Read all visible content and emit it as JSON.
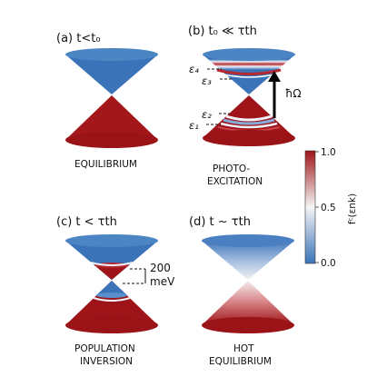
{
  "panels": {
    "a": {
      "title": "(a) t<t₀",
      "caption_lines": [
        "EQUILIBRIUM"
      ]
    },
    "b": {
      "title": "(b) t₀ ≪ τth",
      "caption_lines": [
        "PHOTO-",
        "EXCITATION"
      ]
    },
    "c": {
      "title": "(c) t < τth",
      "caption_lines": [
        "POPULATION",
        "INVERSION"
      ]
    },
    "d": {
      "title": "(d) t ~ τth",
      "caption_lines": [
        "HOT",
        "EQUILIBRIUM"
      ]
    }
  },
  "energy_levels": {
    "e4": "ε₄",
    "e3": "ε₃",
    "e2": "ε₂",
    "e1": "ε₁"
  },
  "photon_label": "ħΩ",
  "gap_label_lines": [
    "200",
    "meV"
  ],
  "colorbar": {
    "label": "fᶜ(εnk)",
    "ticks": [
      "1.0",
      "0.5",
      "0.0"
    ],
    "colors": {
      "low": "#3a73b8",
      "mid": "#f5f5f5",
      "high": "#9e1418"
    }
  }
}
